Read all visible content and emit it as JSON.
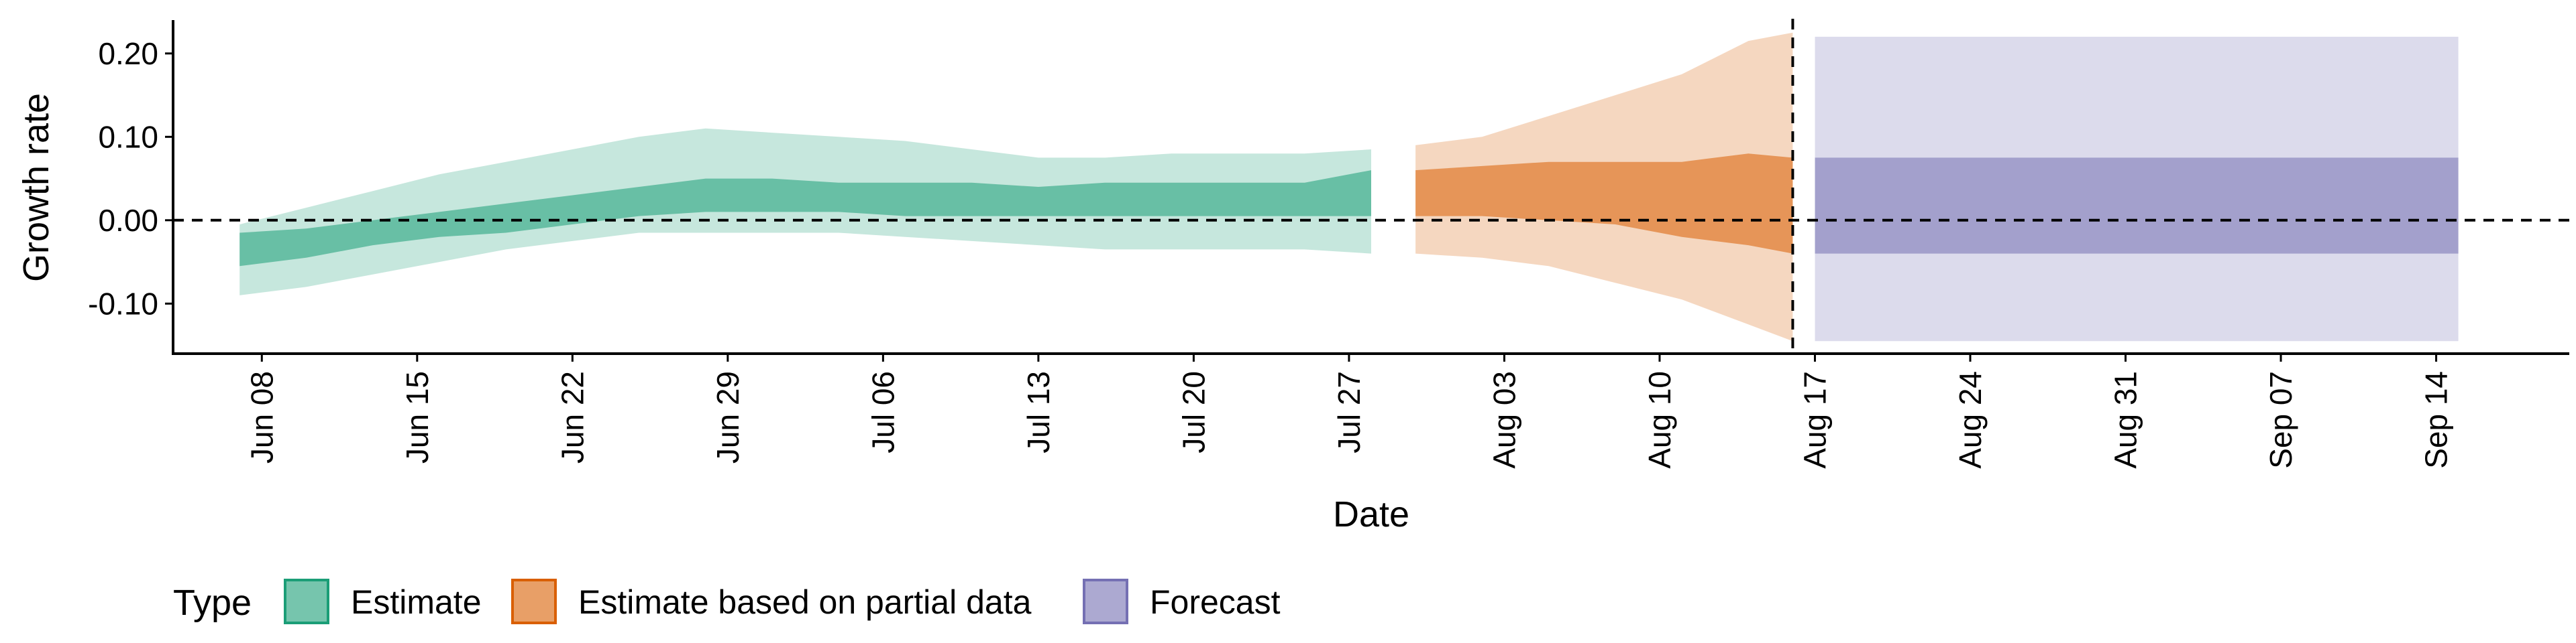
{
  "chart_data": {
    "type": "area",
    "xlabel": "Date",
    "ylabel": "Growth rate",
    "ylim": [
      -0.16,
      0.24
    ],
    "y_ticks": [
      -0.1,
      0.0,
      0.1,
      0.2
    ],
    "y_tick_labels": [
      "-0.10",
      "0.00",
      "0.10",
      "0.20"
    ],
    "x_range": [
      "2020-06-04",
      "2020-09-20"
    ],
    "x_ticks": [
      "2020-06-08",
      "2020-06-15",
      "2020-06-22",
      "2020-06-29",
      "2020-07-06",
      "2020-07-13",
      "2020-07-20",
      "2020-07-27",
      "2020-08-03",
      "2020-08-10",
      "2020-08-17",
      "2020-08-24",
      "2020-08-31",
      "2020-09-07",
      "2020-09-14"
    ],
    "x_tick_labels": [
      "Jun 08",
      "Jun 15",
      "Jun 22",
      "Jun 29",
      "Jul 06",
      "Jul 13",
      "Jul 20",
      "Jul 27",
      "Aug 03",
      "Aug 10",
      "Aug 17",
      "Aug 24",
      "Aug 31",
      "Sep 07",
      "Sep 14"
    ],
    "reference_lines": {
      "horizontal_y": 0.0,
      "vertical_date": "2020-08-16",
      "style": "dashed"
    },
    "grid": false,
    "legend_title": "Type",
    "legend_position": "bottom-left",
    "series": [
      {
        "name": "Estimate",
        "fill_color": "#1b9e77",
        "points": [
          {
            "date": "2020-06-07",
            "outer_lo": -0.09,
            "inner_lo": -0.055,
            "inner_hi": -0.015,
            "outer_hi": -0.005
          },
          {
            "date": "2020-06-10",
            "outer_lo": -0.08,
            "inner_lo": -0.045,
            "inner_hi": -0.01,
            "outer_hi": 0.015
          },
          {
            "date": "2020-06-13",
            "outer_lo": -0.065,
            "inner_lo": -0.03,
            "inner_hi": 0.0,
            "outer_hi": 0.035
          },
          {
            "date": "2020-06-16",
            "outer_lo": -0.05,
            "inner_lo": -0.02,
            "inner_hi": 0.01,
            "outer_hi": 0.055
          },
          {
            "date": "2020-06-19",
            "outer_lo": -0.035,
            "inner_lo": -0.015,
            "inner_hi": 0.02,
            "outer_hi": 0.07
          },
          {
            "date": "2020-06-22",
            "outer_lo": -0.025,
            "inner_lo": -0.005,
            "inner_hi": 0.03,
            "outer_hi": 0.085
          },
          {
            "date": "2020-06-25",
            "outer_lo": -0.015,
            "inner_lo": 0.005,
            "inner_hi": 0.04,
            "outer_hi": 0.1
          },
          {
            "date": "2020-06-28",
            "outer_lo": -0.015,
            "inner_lo": 0.01,
            "inner_hi": 0.05,
            "outer_hi": 0.11
          },
          {
            "date": "2020-07-01",
            "outer_lo": -0.015,
            "inner_lo": 0.01,
            "inner_hi": 0.05,
            "outer_hi": 0.105
          },
          {
            "date": "2020-07-04",
            "outer_lo": -0.015,
            "inner_lo": 0.01,
            "inner_hi": 0.045,
            "outer_hi": 0.1
          },
          {
            "date": "2020-07-07",
            "outer_lo": -0.02,
            "inner_lo": 0.005,
            "inner_hi": 0.045,
            "outer_hi": 0.095
          },
          {
            "date": "2020-07-10",
            "outer_lo": -0.025,
            "inner_lo": 0.005,
            "inner_hi": 0.045,
            "outer_hi": 0.085
          },
          {
            "date": "2020-07-13",
            "outer_lo": -0.03,
            "inner_lo": 0.005,
            "inner_hi": 0.04,
            "outer_hi": 0.075
          },
          {
            "date": "2020-07-16",
            "outer_lo": -0.035,
            "inner_lo": 0.005,
            "inner_hi": 0.045,
            "outer_hi": 0.075
          },
          {
            "date": "2020-07-19",
            "outer_lo": -0.035,
            "inner_lo": 0.005,
            "inner_hi": 0.045,
            "outer_hi": 0.08
          },
          {
            "date": "2020-07-22",
            "outer_lo": -0.035,
            "inner_lo": 0.005,
            "inner_hi": 0.045,
            "outer_hi": 0.08
          },
          {
            "date": "2020-07-25",
            "outer_lo": -0.035,
            "inner_lo": 0.005,
            "inner_hi": 0.045,
            "outer_hi": 0.08
          },
          {
            "date": "2020-07-28",
            "outer_lo": -0.04,
            "inner_lo": 0.005,
            "inner_hi": 0.06,
            "outer_hi": 0.085
          }
        ]
      },
      {
        "name": "Estimate based on partial data",
        "fill_color": "#d95f02",
        "points": [
          {
            "date": "2020-07-30",
            "outer_lo": -0.04,
            "inner_lo": 0.005,
            "inner_hi": 0.06,
            "outer_hi": 0.09
          },
          {
            "date": "2020-08-02",
            "outer_lo": -0.045,
            "inner_lo": 0.005,
            "inner_hi": 0.065,
            "outer_hi": 0.1
          },
          {
            "date": "2020-08-05",
            "outer_lo": -0.055,
            "inner_lo": 0.0,
            "inner_hi": 0.07,
            "outer_hi": 0.125
          },
          {
            "date": "2020-08-08",
            "outer_lo": -0.075,
            "inner_lo": -0.005,
            "inner_hi": 0.07,
            "outer_hi": 0.15
          },
          {
            "date": "2020-08-11",
            "outer_lo": -0.095,
            "inner_lo": -0.02,
            "inner_hi": 0.07,
            "outer_hi": 0.175
          },
          {
            "date": "2020-08-14",
            "outer_lo": -0.125,
            "inner_lo": -0.03,
            "inner_hi": 0.08,
            "outer_hi": 0.215
          },
          {
            "date": "2020-08-16",
            "outer_lo": -0.145,
            "inner_lo": -0.04,
            "inner_hi": 0.075,
            "outer_hi": 0.225
          }
        ]
      },
      {
        "name": "Forecast",
        "fill_color": "#7570b3",
        "points": [
          {
            "date": "2020-08-17",
            "outer_lo": -0.145,
            "inner_lo": -0.04,
            "inner_hi": 0.075,
            "outer_hi": 0.22
          },
          {
            "date": "2020-09-15",
            "outer_lo": -0.145,
            "inner_lo": -0.04,
            "inner_hi": 0.075,
            "outer_hi": 0.22
          }
        ]
      }
    ]
  }
}
